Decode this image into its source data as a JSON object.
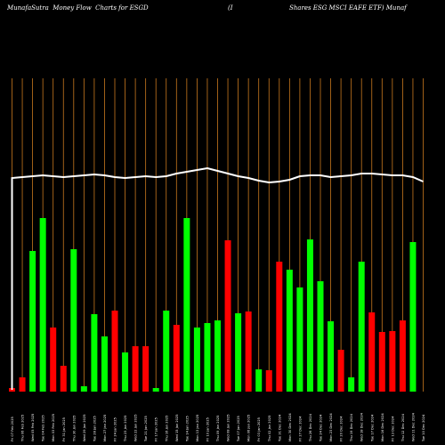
{
  "header": {
    "left": "MunafaSutra  Money Flow  Charts for ESGD",
    "mid": "(I",
    "right": "Shares ESG MSCI EAFE ETF) Munaf"
  },
  "colors": {
    "background": "#000000",
    "grid": "#c8781e",
    "up": "#00ff00",
    "down": "#ff0000",
    "price_line": "#ffffff"
  },
  "chart_data": {
    "type": "bar",
    "title": "",
    "categories": [
      "Fri 07 Feb 2025",
      "Thu 06 Feb 2025",
      "Wed 05 Feb 2025",
      "Tue 04 Feb 2025",
      "Mon 03 Feb 2025",
      "Fri 31 Jan 2025",
      "Thu 30 Jan 2025",
      "Wed 29 Jan 2025",
      "Tue 28 Jan 2025",
      "Mon 27 Jan 2025",
      "Fri 24 Jan 2025",
      "Thu 23 Jan 2025",
      "Wed 22 Jan 2025",
      "Tue 21 Jan 2025",
      "Fri 17 Jan 2025",
      "Thu 16 Jan 2025",
      "Wed 15 Jan 2025",
      "Tue 14 Jan 2025",
      "Mon 13 Jan 2025",
      "Fri 10 Jan 2025",
      "Thu 09 Jan 2025",
      "Wed 08 Jan 2025",
      "Tue 07 Jan 2025",
      "Mon 06 Jan 2025",
      "Fri 03 Jan 2025",
      "Thu 02 Jan 2025",
      "Tue 31 Dec 2024",
      "Mon 30 Dec 2024",
      "Fri 27 Dec 2024",
      "Thu 26 Dec 2024",
      "Tue 24 Dec 2024",
      "Mon 23 Dec 2024",
      "Fri 20 Dec 2024",
      "Thu 19 Dec 2024",
      "Wed 18 Dec 2024",
      "Tue 17 Dec 2024",
      "Mon 16 Dec 2024",
      "Fri 13 Dec 2024",
      "Thu 12 Dec 2024",
      "Wed 11 Dec 2024",
      "Tue 10 Dec 2024"
    ],
    "values": [
      4,
      16,
      158,
      195,
      72,
      29,
      160,
      6,
      87,
      62,
      91,
      44,
      51,
      51,
      4,
      91,
      75,
      195,
      72,
      77,
      80,
      170,
      88,
      90,
      25,
      24,
      146,
      137,
      117,
      171,
      124,
      79,
      47,
      16,
      146,
      89,
      67,
      68,
      80,
      168,
      0
    ],
    "directions": [
      "down",
      "down",
      "up",
      "up",
      "down",
      "down",
      "up",
      "up",
      "up",
      "up",
      "down",
      "up",
      "down",
      "down",
      "up",
      "up",
      "down",
      "up",
      "up",
      "up",
      "up",
      "down",
      "up",
      "down",
      "up",
      "down",
      "down",
      "up",
      "up",
      "up",
      "up",
      "up",
      "down",
      "up",
      "up",
      "down",
      "down",
      "down",
      "down",
      "up",
      "up"
    ],
    "price_line": [
      200,
      201,
      202,
      203,
      202,
      201,
      202,
      203,
      204,
      203,
      201,
      200,
      201,
      202,
      201,
      202,
      205,
      207,
      209,
      211,
      208,
      205,
      202,
      200,
      197,
      195,
      196,
      198,
      202,
      203,
      203,
      201,
      202,
      203,
      205,
      205,
      204,
      203,
      203,
      201,
      196
    ],
    "price_line_dir": "right-to-left",
    "grid": true,
    "legend": "none"
  }
}
